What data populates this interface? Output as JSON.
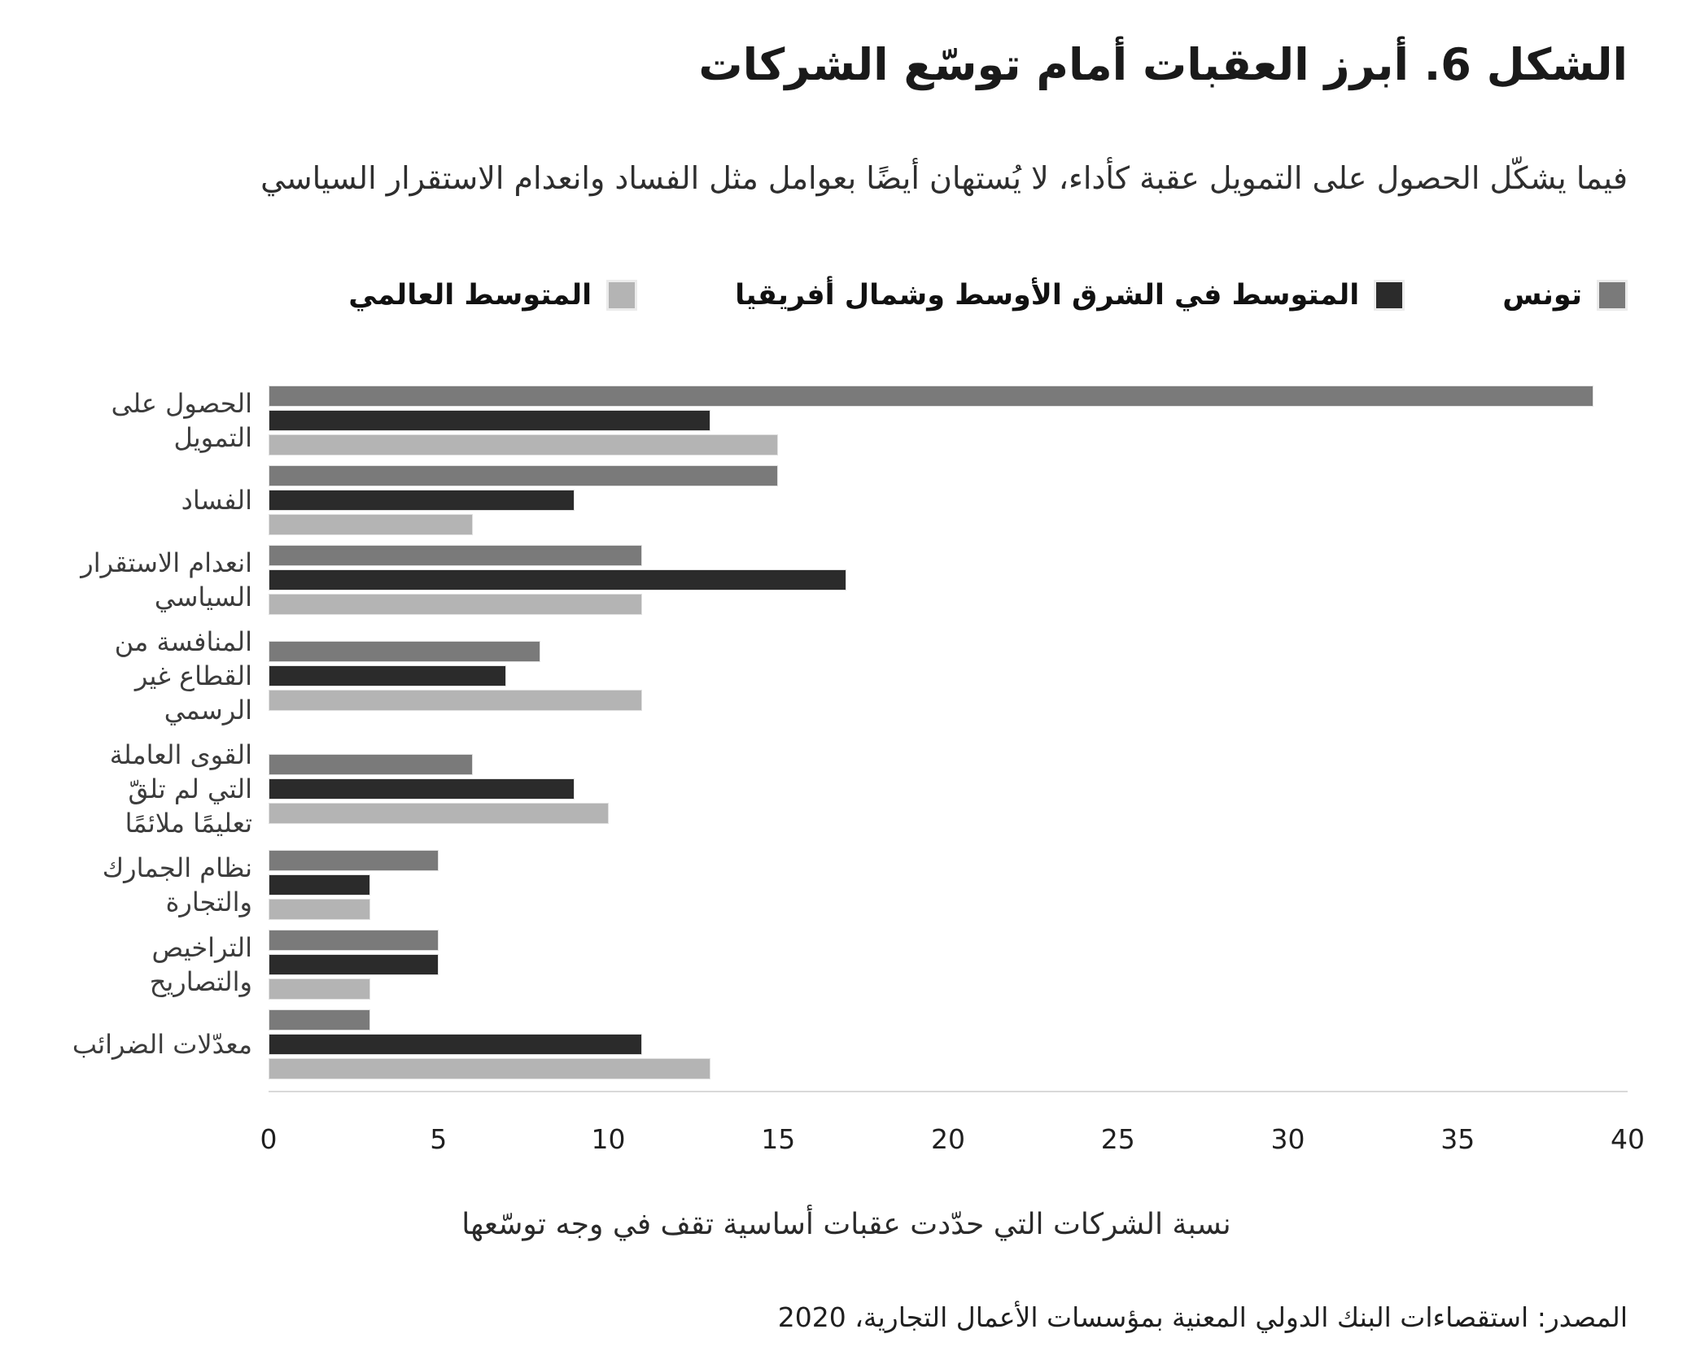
{
  "figure": {
    "title": "الشكل 6. أبرز العقبات أمام توسّع الشركات",
    "subtitle": "فيما يشكّل الحصول على التمويل عقبة كأداء، لا يُستهان أيضًا بعوامل مثل الفساد وانعدام الاستقرار السياسي",
    "source": "المصدر: استقصاءات البنك الدولي المعنية بمؤسسات الأعمال التجارية، 2020"
  },
  "chart_data": {
    "type": "bar",
    "orientation": "horizontal",
    "categories": [
      "الحصول على التمويل",
      "الفساد",
      "انعدام الاستقرار السياسي",
      "المنافسة من القطاع غير الرسمي",
      "القوى العاملة التي لم تلقّ تعليمًا ملائمًا",
      "نظام الجمارك والتجارة",
      "التراخيص والتصاريح",
      "معدّلات الضرائب"
    ],
    "series": [
      {
        "name": "تونس",
        "color": "#7a7a7a",
        "values": [
          39,
          15,
          11,
          8,
          6,
          5,
          5,
          3
        ]
      },
      {
        "name": "المتوسط في الشرق الأوسط وشمال أفريقيا",
        "color": "#2b2b2b",
        "values": [
          13,
          9,
          17,
          7,
          9,
          3,
          5,
          11
        ]
      },
      {
        "name": "المتوسط العالمي",
        "color": "#b4b4b4",
        "values": [
          15,
          6,
          11,
          11,
          10,
          3,
          3,
          13
        ]
      }
    ],
    "xlabel": "نسبة الشركات التي حدّدت عقبات أساسية تقف في وجه توسّعها",
    "xlim": [
      0,
      40
    ],
    "xticks": [
      0,
      5,
      10,
      15,
      20,
      25,
      30,
      35,
      40
    ],
    "legend_position": "top",
    "grid": false
  }
}
